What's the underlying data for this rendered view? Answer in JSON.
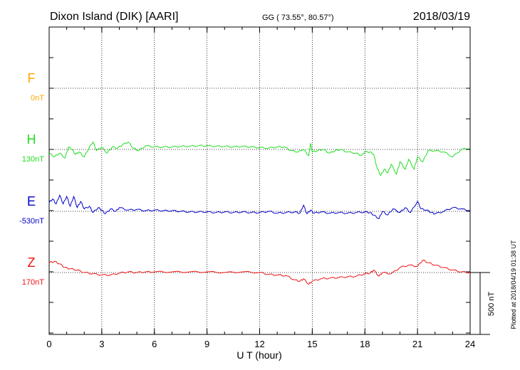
{
  "header": {
    "station": "Dixon Island (DIK)  [AARI]",
    "coords": "GG ( 73.55°,  80.57°)",
    "date": "2018/03/19"
  },
  "side_note": "Plotted at 2018/04/19 01:38 UT",
  "scale_label": "500 nT",
  "colors": {
    "F": "#ffa500",
    "H": "#22dd22",
    "E": "#0000cc",
    "Z": "#ee1111",
    "axis": "#000000"
  },
  "chart_data": {
    "type": "line",
    "title": "Dixon Island (DIK)  [AARI]",
    "xlabel": "U T (hour)",
    "xlim": [
      0,
      24
    ],
    "xticks": [
      0,
      3,
      6,
      9,
      12,
      15,
      18,
      21,
      24
    ],
    "grid": true,
    "scale_bar_nT": 500,
    "series": [
      {
        "name": "F",
        "baseline_label": "0nT",
        "baseline_nT": 0,
        "points": []
      },
      {
        "name": "H",
        "baseline_label": "130nT",
        "baseline_nT": 130,
        "points": [
          [
            0,
            -30
          ],
          [
            0.3,
            -60
          ],
          [
            0.6,
            -30
          ],
          [
            0.9,
            -70
          ],
          [
            1.1,
            20
          ],
          [
            1.3,
            0
          ],
          [
            1.5,
            -40
          ],
          [
            1.7,
            -20
          ],
          [
            2.0,
            -60
          ],
          [
            2.3,
            20
          ],
          [
            2.5,
            60
          ],
          [
            2.7,
            -10
          ],
          [
            3.0,
            20
          ],
          [
            3.3,
            -30
          ],
          [
            3.6,
            20
          ],
          [
            3.9,
            10
          ],
          [
            4.2,
            40
          ],
          [
            4.5,
            60
          ],
          [
            4.8,
            10
          ],
          [
            5.1,
            -10
          ],
          [
            5.5,
            30
          ],
          [
            6.0,
            20
          ],
          [
            6.5,
            20
          ],
          [
            7.0,
            20
          ],
          [
            7.5,
            25
          ],
          [
            8.0,
            25
          ],
          [
            8.5,
            30
          ],
          [
            9.0,
            30
          ],
          [
            9.5,
            25
          ],
          [
            10.0,
            25
          ],
          [
            10.5,
            20
          ],
          [
            11.0,
            25
          ],
          [
            11.5,
            20
          ],
          [
            12.0,
            15
          ],
          [
            12.5,
            10
          ],
          [
            13.0,
            20
          ],
          [
            13.4,
            20
          ],
          [
            13.8,
            -10
          ],
          [
            14.2,
            -20
          ],
          [
            14.5,
            0
          ],
          [
            14.8,
            -50
          ],
          [
            14.9,
            50
          ],
          [
            15.0,
            -20
          ],
          [
            15.3,
            -10
          ],
          [
            15.6,
            0
          ],
          [
            16.0,
            -30
          ],
          [
            16.3,
            -10
          ],
          [
            16.6,
            0
          ],
          [
            17.0,
            -20
          ],
          [
            17.5,
            -30
          ],
          [
            17.8,
            -50
          ],
          [
            18.0,
            -20
          ],
          [
            18.3,
            -20
          ],
          [
            18.5,
            -40
          ],
          [
            18.7,
            -150
          ],
          [
            18.9,
            -210
          ],
          [
            19.1,
            -160
          ],
          [
            19.3,
            -190
          ],
          [
            19.5,
            -120
          ],
          [
            19.8,
            -200
          ],
          [
            20.0,
            -100
          ],
          [
            20.3,
            -160
          ],
          [
            20.5,
            -80
          ],
          [
            20.8,
            -160
          ],
          [
            21.0,
            -60
          ],
          [
            21.3,
            -100
          ],
          [
            21.6,
            -10
          ],
          [
            22.0,
            -10
          ],
          [
            22.5,
            -20
          ],
          [
            23.0,
            -60
          ],
          [
            23.5,
            0
          ],
          [
            24.0,
            10
          ]
        ]
      },
      {
        "name": "E",
        "baseline_label": "-530nT",
        "baseline_nT": -530,
        "points": [
          [
            0,
            70
          ],
          [
            0.2,
            100
          ],
          [
            0.4,
            60
          ],
          [
            0.6,
            130
          ],
          [
            0.8,
            60
          ],
          [
            1.0,
            120
          ],
          [
            1.2,
            40
          ],
          [
            1.4,
            120
          ],
          [
            1.6,
            30
          ],
          [
            1.8,
            80
          ],
          [
            2.0,
            20
          ],
          [
            2.3,
            40
          ],
          [
            2.5,
            -10
          ],
          [
            2.8,
            30
          ],
          [
            3.0,
            10
          ],
          [
            3.2,
            -20
          ],
          [
            3.5,
            20
          ],
          [
            3.8,
            0
          ],
          [
            4.0,
            30
          ],
          [
            4.5,
            10
          ],
          [
            5.0,
            15
          ],
          [
            5.5,
            5
          ],
          [
            6.0,
            10
          ],
          [
            6.5,
            5
          ],
          [
            7.0,
            5
          ],
          [
            7.5,
            0
          ],
          [
            8.0,
            -5
          ],
          [
            8.5,
            -5
          ],
          [
            9.0,
            -5
          ],
          [
            9.5,
            -10
          ],
          [
            10.0,
            -5
          ],
          [
            10.5,
            -10
          ],
          [
            11.0,
            -5
          ],
          [
            11.5,
            -10
          ],
          [
            12.0,
            -10
          ],
          [
            12.5,
            0
          ],
          [
            13.0,
            -15
          ],
          [
            13.5,
            -10
          ],
          [
            14.0,
            -5
          ],
          [
            14.3,
            -15
          ],
          [
            14.5,
            50
          ],
          [
            14.7,
            -20
          ],
          [
            14.9,
            10
          ],
          [
            15.1,
            -15
          ],
          [
            15.5,
            -5
          ],
          [
            16.0,
            -15
          ],
          [
            16.5,
            -10
          ],
          [
            17.0,
            -15
          ],
          [
            17.5,
            -10
          ],
          [
            18.0,
            -5
          ],
          [
            18.3,
            -10
          ],
          [
            18.5,
            -30
          ],
          [
            18.8,
            -60
          ],
          [
            19.0,
            0
          ],
          [
            19.3,
            -30
          ],
          [
            19.6,
            20
          ],
          [
            20.0,
            -10
          ],
          [
            20.3,
            30
          ],
          [
            20.6,
            -10
          ],
          [
            21.0,
            80
          ],
          [
            21.2,
            20
          ],
          [
            21.5,
            10
          ],
          [
            21.8,
            -10
          ],
          [
            22.0,
            -20
          ],
          [
            22.5,
            0
          ],
          [
            23.0,
            30
          ],
          [
            23.5,
            20
          ],
          [
            24.0,
            0
          ]
        ]
      },
      {
        "name": "Z",
        "baseline_label": "170nT",
        "baseline_nT": 170,
        "points": [
          [
            0,
            80
          ],
          [
            0.3,
            90
          ],
          [
            0.6,
            70
          ],
          [
            0.9,
            40
          ],
          [
            1.2,
            30
          ],
          [
            1.6,
            20
          ],
          [
            2.0,
            0
          ],
          [
            2.5,
            -10
          ],
          [
            3.0,
            -20
          ],
          [
            3.5,
            -20
          ],
          [
            4.0,
            -5
          ],
          [
            4.5,
            5
          ],
          [
            5.0,
            0
          ],
          [
            5.5,
            5
          ],
          [
            6.0,
            5
          ],
          [
            7.0,
            5
          ],
          [
            8.0,
            5
          ],
          [
            9.0,
            5
          ],
          [
            10.0,
            0
          ],
          [
            11.0,
            5
          ],
          [
            12.0,
            0
          ],
          [
            12.5,
            -15
          ],
          [
            13.0,
            -20
          ],
          [
            13.5,
            -25
          ],
          [
            14.0,
            -60
          ],
          [
            14.3,
            -70
          ],
          [
            14.5,
            -50
          ],
          [
            14.8,
            -95
          ],
          [
            15.0,
            -70
          ],
          [
            15.5,
            -50
          ],
          [
            16.0,
            -45
          ],
          [
            16.5,
            -40
          ],
          [
            17.0,
            -35
          ],
          [
            17.5,
            -30
          ],
          [
            18.0,
            -10
          ],
          [
            18.3,
            -5
          ],
          [
            18.5,
            20
          ],
          [
            18.8,
            -30
          ],
          [
            19.0,
            0
          ],
          [
            19.5,
            -10
          ],
          [
            20.0,
            40
          ],
          [
            20.5,
            60
          ],
          [
            21.0,
            50
          ],
          [
            21.3,
            100
          ],
          [
            21.6,
            80
          ],
          [
            22.0,
            60
          ],
          [
            22.5,
            40
          ],
          [
            23.0,
            20
          ],
          [
            23.5,
            5
          ],
          [
            24.0,
            0
          ]
        ]
      }
    ]
  }
}
